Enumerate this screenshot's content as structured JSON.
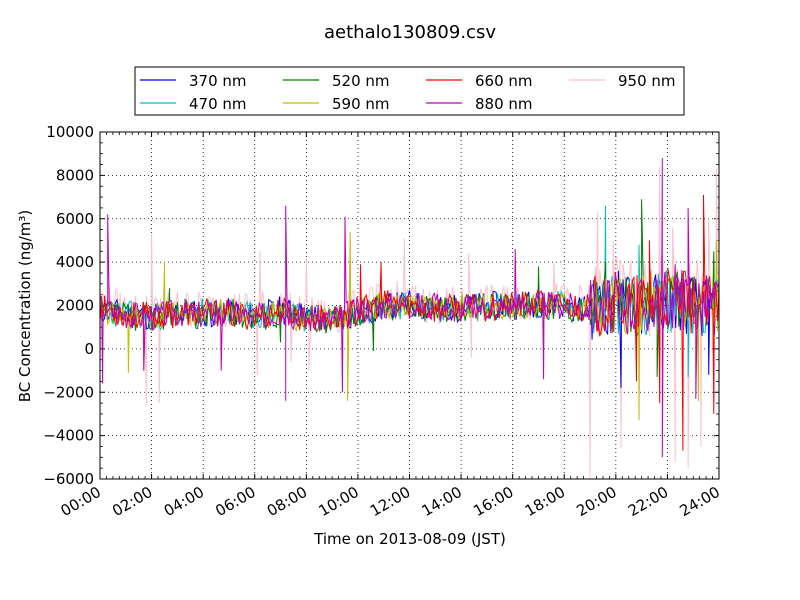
{
  "chart_data": {
    "type": "line",
    "title": "aethalo130809.csv",
    "xlabel": "Time on 2013-08-09 (JST)",
    "ylabel": "BC Concentration (ng/m³)",
    "ylim": [
      -6000,
      10000
    ],
    "y_ticks": [
      "−6000",
      "−4000",
      "−2000",
      "0",
      "2000",
      "4000",
      "6000",
      "8000",
      "10000"
    ],
    "x_ticks": [
      "00:00",
      "02:00",
      "04:00",
      "06:00",
      "08:00",
      "10:00",
      "12:00",
      "14:00",
      "16:00",
      "18:00",
      "20:00",
      "22:00",
      "24:00"
    ],
    "xlim_hours": [
      0,
      24
    ],
    "grid": true,
    "legend_position": "top",
    "series": [
      {
        "name": "370 nm",
        "color": "#0000ff",
        "seed": 11,
        "points": [
          [
            0,
            1800
          ],
          [
            1,
            1600
          ],
          [
            2,
            1500
          ],
          [
            3,
            1700
          ],
          [
            4,
            1600
          ],
          [
            5,
            1700
          ],
          [
            6,
            1500
          ],
          [
            7,
            1800
          ],
          [
            8,
            1500
          ],
          [
            9,
            1300
          ],
          [
            10,
            1600
          ],
          [
            11,
            1900
          ],
          [
            12,
            2100
          ],
          [
            13,
            1800
          ],
          [
            14,
            1900
          ],
          [
            15,
            2000
          ],
          [
            16,
            2000
          ],
          [
            17,
            2100
          ],
          [
            18,
            2000
          ],
          [
            19,
            1800
          ],
          [
            20,
            2200
          ],
          [
            21,
            1900
          ],
          [
            22,
            2300
          ],
          [
            23,
            2000
          ],
          [
            24,
            1800
          ]
        ],
        "spikes": [
          [
            20.1,
            3600
          ],
          [
            20.2,
            -1800
          ],
          [
            22.1,
            3000
          ],
          [
            23.6,
            -1200
          ]
        ]
      },
      {
        "name": "470 nm",
        "color": "#00bfbf",
        "seed": 23,
        "points": [
          [
            0,
            1700
          ],
          [
            1,
            1600
          ],
          [
            2,
            1500
          ],
          [
            3,
            1600
          ],
          [
            4,
            1700
          ],
          [
            5,
            1600
          ],
          [
            6,
            1500
          ],
          [
            7,
            1700
          ],
          [
            8,
            1400
          ],
          [
            9,
            1400
          ],
          [
            10,
            1700
          ],
          [
            11,
            2000
          ],
          [
            12,
            2000
          ],
          [
            13,
            1900
          ],
          [
            14,
            1800
          ],
          [
            15,
            2000
          ],
          [
            16,
            1900
          ],
          [
            17,
            2000
          ],
          [
            18,
            2100
          ],
          [
            19,
            1900
          ],
          [
            20,
            2100
          ],
          [
            21,
            2000
          ],
          [
            22,
            2200
          ],
          [
            23,
            2000
          ],
          [
            24,
            1900
          ]
        ],
        "spikes": [
          [
            19.6,
            6600
          ],
          [
            20.9,
            4800
          ],
          [
            22.6,
            3500
          ],
          [
            22.8,
            -1300
          ]
        ]
      },
      {
        "name": "520 nm",
        "color": "#008000",
        "seed": 37,
        "points": [
          [
            0,
            1700
          ],
          [
            1,
            1500
          ],
          [
            2,
            1400
          ],
          [
            3,
            1700
          ],
          [
            4,
            1500
          ],
          [
            5,
            1700
          ],
          [
            6,
            1500
          ],
          [
            7,
            1600
          ],
          [
            8,
            1400
          ],
          [
            9,
            1300
          ],
          [
            10,
            1600
          ],
          [
            11,
            2000
          ],
          [
            12,
            2000
          ],
          [
            13,
            1800
          ],
          [
            14,
            1900
          ],
          [
            15,
            1900
          ],
          [
            16,
            2000
          ],
          [
            17,
            2000
          ],
          [
            18,
            1900
          ],
          [
            19,
            1800
          ],
          [
            20,
            2100
          ],
          [
            21,
            1900
          ],
          [
            22,
            2200
          ],
          [
            23,
            2100
          ],
          [
            24,
            1700
          ]
        ],
        "spikes": [
          [
            2.7,
            2800
          ],
          [
            7.0,
            300
          ],
          [
            10.6,
            -100
          ],
          [
            17.0,
            3800
          ],
          [
            19.6,
            4000
          ],
          [
            21.0,
            6900
          ],
          [
            21.6,
            -1300
          ],
          [
            23.8,
            4500
          ]
        ]
      },
      {
        "name": "590 nm",
        "color": "#bfbf00",
        "seed": 41,
        "points": [
          [
            0,
            1800
          ],
          [
            1,
            1500
          ],
          [
            2,
            1500
          ],
          [
            3,
            1600
          ],
          [
            4,
            1600
          ],
          [
            5,
            1700
          ],
          [
            6,
            1500
          ],
          [
            7,
            1700
          ],
          [
            8,
            1300
          ],
          [
            9,
            1300
          ],
          [
            10,
            1800
          ],
          [
            11,
            2100
          ],
          [
            12,
            1900
          ],
          [
            13,
            1800
          ],
          [
            14,
            1900
          ],
          [
            15,
            2000
          ],
          [
            16,
            2000
          ],
          [
            17,
            2000
          ],
          [
            18,
            2000
          ],
          [
            19,
            1800
          ],
          [
            20,
            2000
          ],
          [
            21,
            2100
          ],
          [
            22,
            2200
          ],
          [
            23,
            2000
          ],
          [
            24,
            1800
          ]
        ],
        "spikes": [
          [
            1.1,
            -1100
          ],
          [
            1.7,
            -1000
          ],
          [
            2.5,
            4000
          ],
          [
            9.7,
            5400
          ],
          [
            9.6,
            -2400
          ],
          [
            20.9,
            -3300
          ],
          [
            23.2,
            -2400
          ],
          [
            23.9,
            5000
          ]
        ]
      },
      {
        "name": "660 nm",
        "color": "#ff0000",
        "seed": 53,
        "points": [
          [
            0,
            1900
          ],
          [
            1,
            1600
          ],
          [
            2,
            1500
          ],
          [
            3,
            1600
          ],
          [
            4,
            1700
          ],
          [
            5,
            1600
          ],
          [
            6,
            1500
          ],
          [
            7,
            1800
          ],
          [
            8,
            1400
          ],
          [
            9,
            1400
          ],
          [
            10,
            1700
          ],
          [
            11,
            2100
          ],
          [
            12,
            2000
          ],
          [
            13,
            1800
          ],
          [
            14,
            1900
          ],
          [
            15,
            1900
          ],
          [
            16,
            2000
          ],
          [
            17,
            2100
          ],
          [
            18,
            2000
          ],
          [
            19,
            1900
          ],
          [
            20,
            2200
          ],
          [
            21,
            2000
          ],
          [
            22,
            2300
          ],
          [
            23,
            2100
          ],
          [
            24,
            1900
          ]
        ],
        "spikes": [
          [
            10.1,
            3900
          ],
          [
            10.9,
            4000
          ],
          [
            19.9,
            2500
          ],
          [
            20.8,
            -1500
          ],
          [
            21.3,
            5000
          ],
          [
            21.7,
            -2500
          ],
          [
            22.6,
            -4700
          ],
          [
            23.4,
            7100
          ],
          [
            23.8,
            -3000
          ]
        ]
      },
      {
        "name": "880 nm",
        "color": "#bf00bf",
        "seed": 67,
        "points": [
          [
            0,
            2000
          ],
          [
            1,
            1600
          ],
          [
            2,
            1500
          ],
          [
            3,
            1700
          ],
          [
            4,
            1600
          ],
          [
            5,
            1700
          ],
          [
            6,
            1500
          ],
          [
            7,
            1700
          ],
          [
            8,
            1400
          ],
          [
            9,
            1400
          ],
          [
            10,
            1800
          ],
          [
            11,
            2000
          ],
          [
            12,
            2100
          ],
          [
            13,
            1900
          ],
          [
            14,
            1900
          ],
          [
            15,
            2000
          ],
          [
            16,
            2000
          ],
          [
            17,
            2100
          ],
          [
            18,
            2000
          ],
          [
            19,
            1900
          ],
          [
            20,
            2100
          ],
          [
            21,
            2000
          ],
          [
            22,
            2300
          ],
          [
            23,
            2200
          ],
          [
            24,
            2100
          ]
        ],
        "spikes": [
          [
            0.1,
            -1600
          ],
          [
            0.3,
            6200
          ],
          [
            1.7,
            -1000
          ],
          [
            4.7,
            -1000
          ],
          [
            7.2,
            -2400
          ],
          [
            7.2,
            6600
          ],
          [
            9.5,
            6100
          ],
          [
            9.4,
            -2000
          ],
          [
            16.1,
            4600
          ],
          [
            17.2,
            -1400
          ],
          [
            21.8,
            8800
          ],
          [
            21.8,
            -5000
          ],
          [
            22.3,
            3900
          ],
          [
            22.8,
            6500
          ],
          [
            23.1,
            -2300
          ],
          [
            24.0,
            6000
          ]
        ]
      },
      {
        "name": "950 nm",
        "color": "#ffc0cb",
        "seed": 79,
        "points": [
          [
            0,
            2200
          ],
          [
            1,
            1800
          ],
          [
            2,
            1700
          ],
          [
            3,
            1900
          ],
          [
            4,
            1800
          ],
          [
            5,
            1900
          ],
          [
            6,
            1800
          ],
          [
            7,
            1900
          ],
          [
            8,
            1500
          ],
          [
            9,
            1500
          ],
          [
            10,
            1900
          ],
          [
            11,
            2200
          ],
          [
            12,
            2200
          ],
          [
            13,
            2000
          ],
          [
            14,
            2000
          ],
          [
            15,
            2100
          ],
          [
            16,
            2100
          ],
          [
            17,
            2200
          ],
          [
            18,
            2200
          ],
          [
            19,
            2100
          ],
          [
            20,
            2300
          ],
          [
            21,
            2200
          ],
          [
            22,
            2500
          ],
          [
            23,
            2300
          ],
          [
            24,
            2200
          ]
        ],
        "spikes": [
          [
            1.8,
            -2600
          ],
          [
            2.0,
            5300
          ],
          [
            2.3,
            -2500
          ],
          [
            6.2,
            4500
          ],
          [
            6.1,
            -1200
          ],
          [
            7.4,
            -600
          ],
          [
            8.0,
            4200
          ],
          [
            8.1,
            -1000
          ],
          [
            11.8,
            5100
          ],
          [
            14.3,
            4400
          ],
          [
            14.4,
            -400
          ],
          [
            17.6,
            4000
          ],
          [
            19.0,
            -6000
          ],
          [
            19.3,
            6300
          ],
          [
            19.9,
            5000
          ],
          [
            20.2,
            -4600
          ],
          [
            21.7,
            8400
          ],
          [
            22.2,
            5600
          ],
          [
            22.3,
            -5200
          ],
          [
            22.8,
            -5500
          ],
          [
            23.3,
            -4500
          ],
          [
            23.6,
            6000
          ],
          [
            23.9,
            8300
          ]
        ]
      }
    ]
  }
}
